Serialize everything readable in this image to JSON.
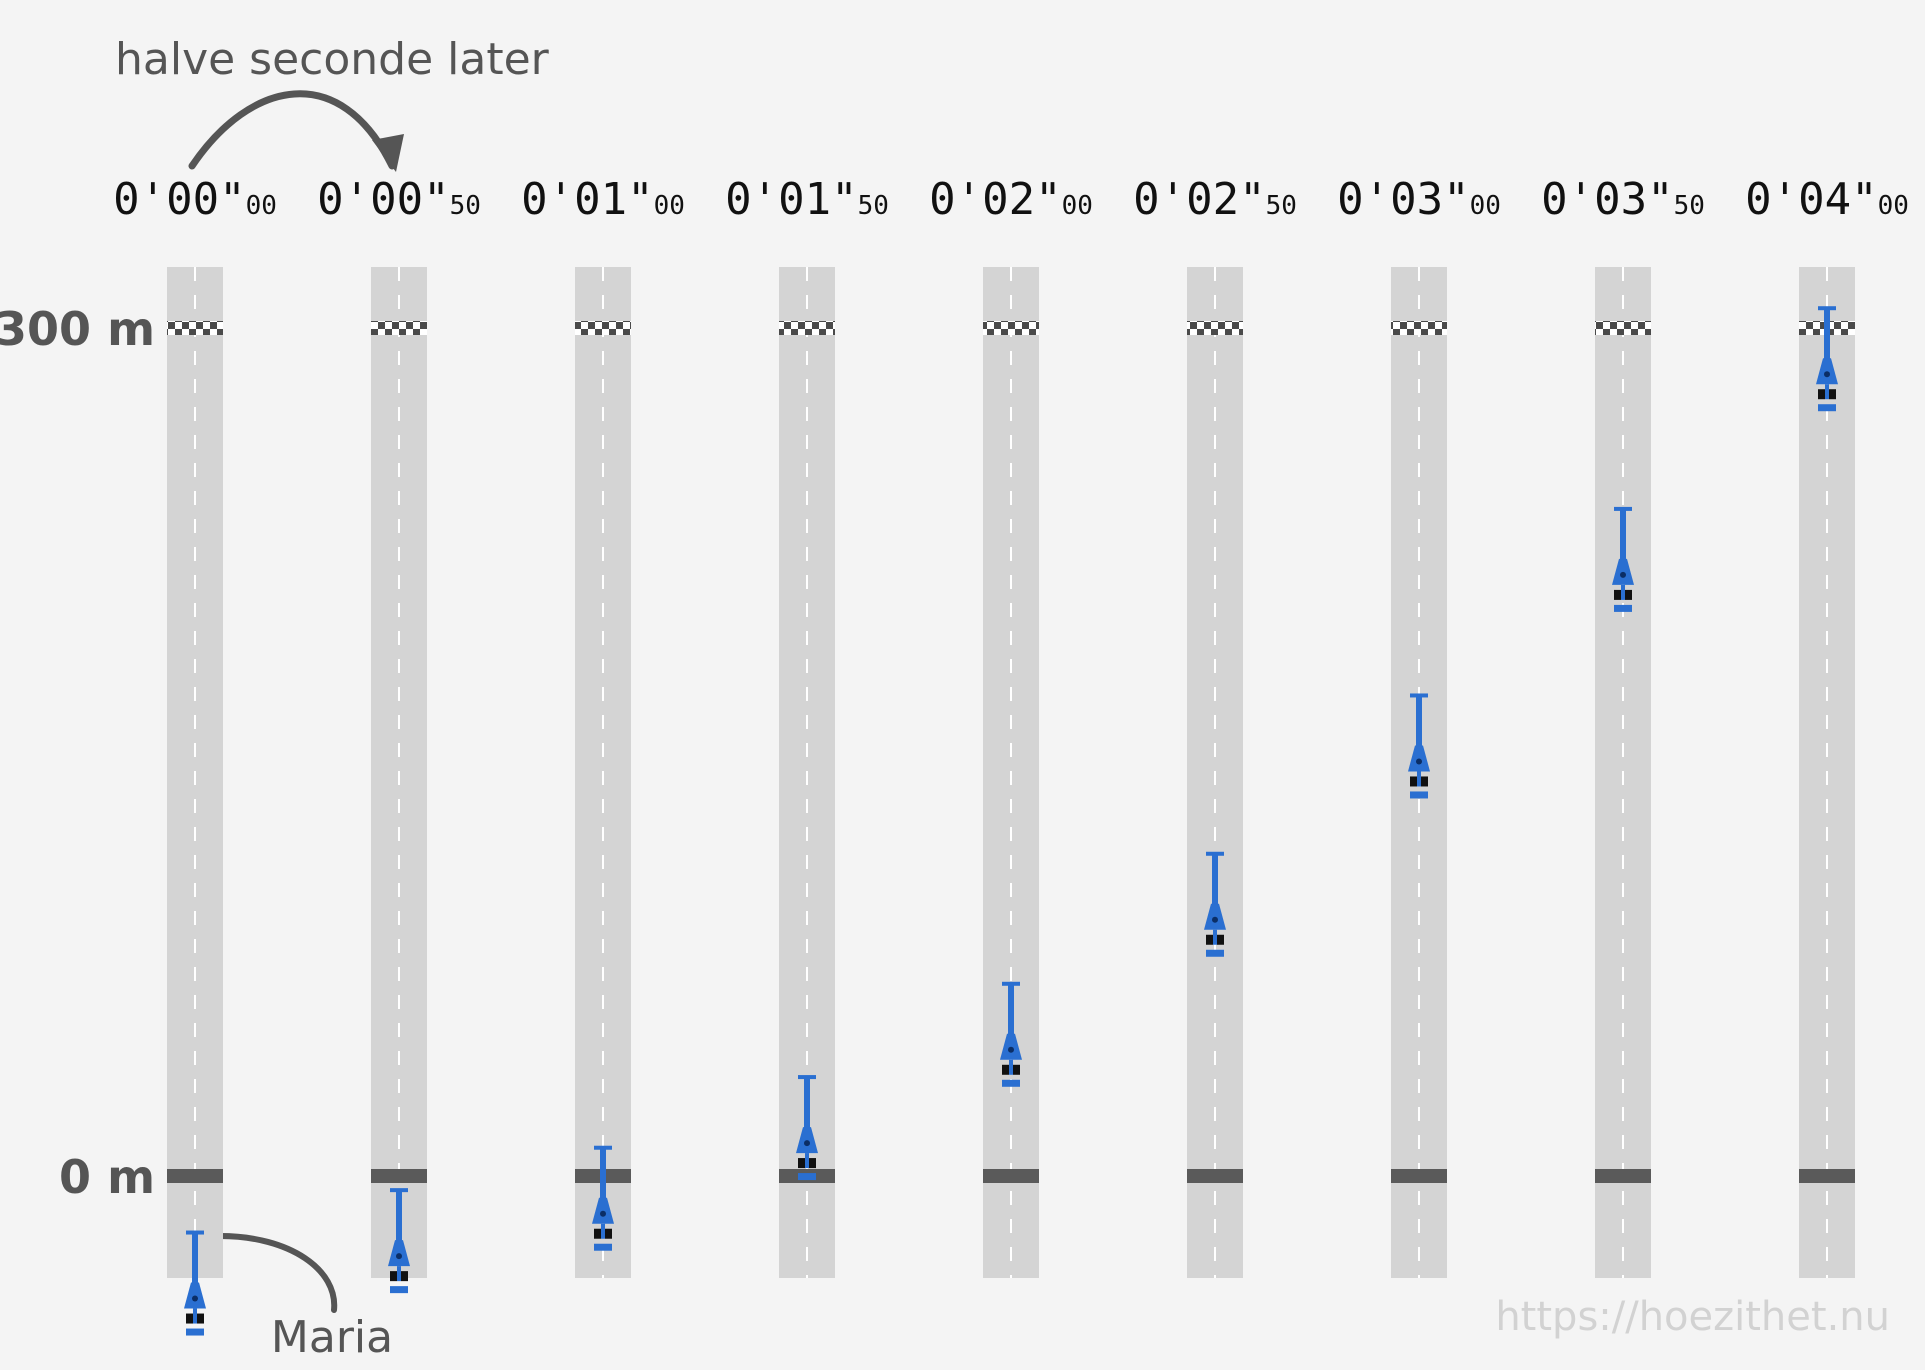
{
  "annotations": {
    "top_text": "halve seconde later",
    "car_label": "Maria",
    "watermark": "https://hoezithet.nu"
  },
  "distance_labels": {
    "finish": "300 m",
    "start": "0 m"
  },
  "distance_range_m": [
    0,
    300
  ],
  "frames": [
    {
      "time_main": "0'00\"",
      "time_frac": "00",
      "position_m": -20
    },
    {
      "time_main": "0'00\"",
      "time_frac": "50",
      "position_m": -5
    },
    {
      "time_main": "0'01\"",
      "time_frac": "00",
      "position_m": 10
    },
    {
      "time_main": "0'01\"",
      "time_frac": "50",
      "position_m": 35
    },
    {
      "time_main": "0'02\"",
      "time_frac": "00",
      "position_m": 68
    },
    {
      "time_main": "0'02\"",
      "time_frac": "50",
      "position_m": 114
    },
    {
      "time_main": "0'03\"",
      "time_frac": "00",
      "position_m": 170
    },
    {
      "time_main": "0'03\"",
      "time_frac": "50",
      "position_m": 236
    },
    {
      "time_main": "0'04\"",
      "time_frac": "00",
      "position_m": 307
    }
  ],
  "colors": {
    "background": "#f4f4f4",
    "track": "#d4d4d4",
    "start_line": "#5a5a5a",
    "car_body": "#2a6fd1",
    "car_wheels": "#111111",
    "text": "#555555",
    "watermark": "#d2d2d2"
  }
}
